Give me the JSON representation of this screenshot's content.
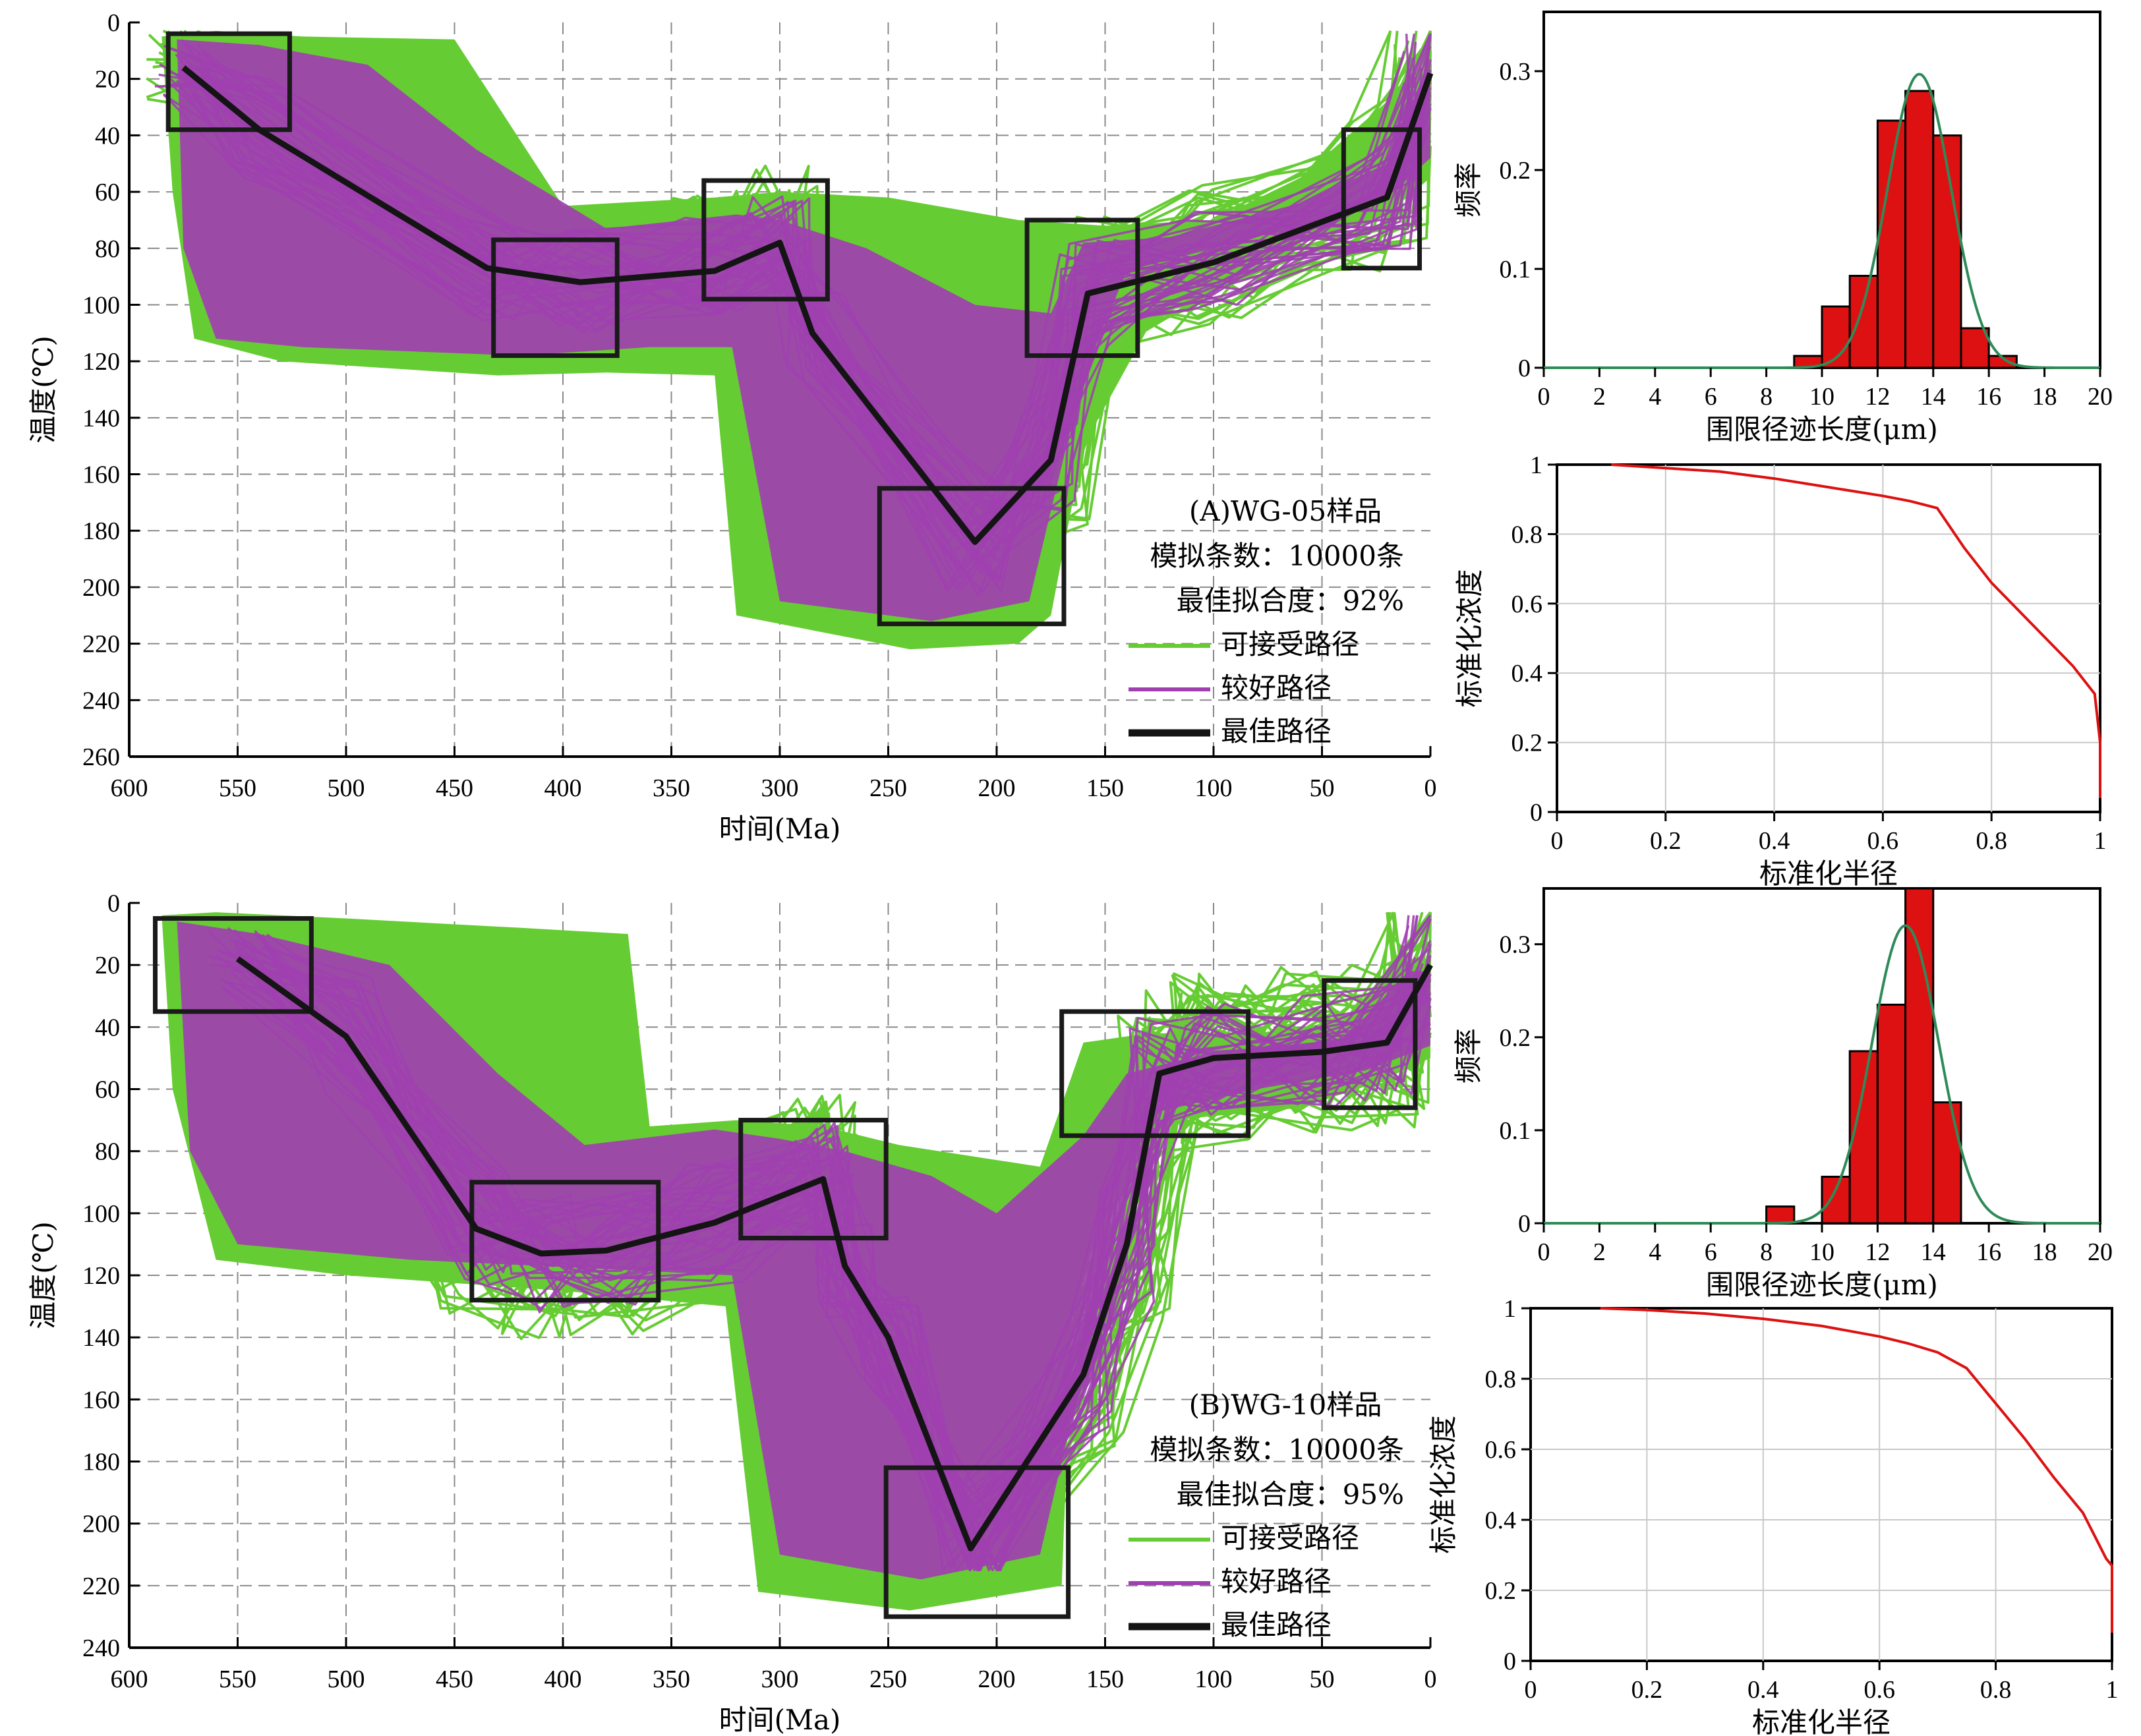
{
  "colors": {
    "acceptable": "#66CC33",
    "good": "#A040B0",
    "best": "#141414",
    "histogram": "#DD1111",
    "curve_green": "#2E8B57",
    "curve_red": "#DD1111"
  },
  "chart_data": [
    {
      "id": "A",
      "type": "line",
      "sample": "(A)WG-05样品",
      "sim_line": "模拟条数：10000条",
      "fit_line": "最佳拟合度：92%",
      "legend": [
        "可接受路径",
        "较好路径",
        "最佳路径"
      ],
      "xlabel": "时间(Ma)",
      "ylabel": "温度(℃)",
      "xlim": [
        600,
        0
      ],
      "ylim": [
        0,
        260
      ],
      "xticks": [
        600,
        550,
        500,
        450,
        400,
        350,
        300,
        250,
        200,
        150,
        100,
        50,
        0
      ],
      "yticks": [
        0,
        20,
        40,
        60,
        80,
        100,
        120,
        140,
        160,
        180,
        200,
        220,
        240,
        260
      ],
      "best_path": [
        [
          575,
          16
        ],
        [
          540,
          38
        ],
        [
          435,
          87
        ],
        [
          392,
          92
        ],
        [
          330,
          88
        ],
        [
          300,
          78
        ],
        [
          285,
          110
        ],
        [
          210,
          184
        ],
        [
          175,
          155
        ],
        [
          158,
          96
        ],
        [
          100,
          85
        ],
        [
          20,
          62
        ],
        [
          0,
          18
        ]
      ],
      "boxes": [
        [
          582,
          4,
          526,
          38
        ],
        [
          432,
          77,
          375,
          118
        ],
        [
          335,
          56,
          278,
          98
        ],
        [
          186,
          70,
          135,
          118
        ],
        [
          254,
          165,
          169,
          213
        ],
        [
          40,
          38,
          5,
          87
        ]
      ],
      "envelope_acceptable": [
        [
          585,
          5
        ],
        [
          560,
          3
        ],
        [
          520,
          5
        ],
        [
          450,
          6
        ],
        [
          400,
          65
        ],
        [
          330,
          62
        ],
        [
          300,
          60
        ],
        [
          250,
          62
        ],
        [
          190,
          70
        ],
        [
          150,
          72
        ],
        [
          100,
          70
        ],
        [
          60,
          55
        ],
        [
          20,
          28
        ],
        [
          10,
          18
        ],
        [
          0,
          18
        ],
        [
          0,
          55
        ],
        [
          20,
          68
        ],
        [
          60,
          78
        ],
        [
          100,
          92
        ],
        [
          130,
          108
        ],
        [
          160,
          150
        ],
        [
          175,
          210
        ],
        [
          190,
          220
        ],
        [
          240,
          222
        ],
        [
          320,
          210
        ],
        [
          330,
          125
        ],
        [
          380,
          124
        ],
        [
          430,
          125
        ],
        [
          530,
          120
        ],
        [
          570,
          112
        ],
        [
          580,
          60
        ]
      ],
      "envelope_good": [
        [
          578,
          6
        ],
        [
          540,
          8
        ],
        [
          490,
          15
        ],
        [
          440,
          45
        ],
        [
          380,
          73
        ],
        [
          320,
          68
        ],
        [
          300,
          70
        ],
        [
          260,
          80
        ],
        [
          210,
          100
        ],
        [
          175,
          103
        ],
        [
          160,
          78
        ],
        [
          120,
          76
        ],
        [
          60,
          64
        ],
        [
          20,
          50
        ],
        [
          5,
          22
        ],
        [
          0,
          22
        ],
        [
          0,
          48
        ],
        [
          20,
          62
        ],
        [
          60,
          72
        ],
        [
          100,
          80
        ],
        [
          140,
          88
        ],
        [
          160,
          125
        ],
        [
          185,
          205
        ],
        [
          230,
          212
        ],
        [
          300,
          205
        ],
        [
          322,
          115
        ],
        [
          360,
          115
        ],
        [
          420,
          118
        ],
        [
          520,
          115
        ],
        [
          560,
          112
        ],
        [
          575,
          80
        ]
      ]
    },
    {
      "id": "B",
      "type": "line",
      "sample": "(B)WG-10样品",
      "sim_line": "模拟条数：10000条",
      "fit_line": "最佳拟合度：95%",
      "legend": [
        "可接受路径",
        "较好路径",
        "最佳路径"
      ],
      "xlabel": "时间(Ma)",
      "ylabel": "温度(℃)",
      "xlim": [
        600,
        0
      ],
      "ylim": [
        0,
        240
      ],
      "xticks": [
        600,
        550,
        500,
        450,
        400,
        350,
        300,
        250,
        200,
        150,
        100,
        50,
        0
      ],
      "yticks": [
        0,
        20,
        40,
        60,
        80,
        100,
        120,
        140,
        160,
        180,
        200,
        220,
        240
      ],
      "best_path": [
        [
          550,
          18
        ],
        [
          500,
          43
        ],
        [
          440,
          105
        ],
        [
          410,
          113
        ],
        [
          380,
          112
        ],
        [
          330,
          103
        ],
        [
          280,
          89
        ],
        [
          270,
          117
        ],
        [
          250,
          140
        ],
        [
          212,
          208
        ],
        [
          160,
          152
        ],
        [
          140,
          110
        ],
        [
          125,
          55
        ],
        [
          100,
          50
        ],
        [
          50,
          48
        ],
        [
          20,
          45
        ],
        [
          0,
          20
        ]
      ],
      "boxes": [
        [
          588,
          5,
          516,
          35
        ],
        [
          442,
          90,
          356,
          128
        ],
        [
          318,
          70,
          251,
          108
        ],
        [
          170,
          35,
          84,
          75
        ],
        [
          251,
          182,
          167,
          230
        ],
        [
          49,
          25,
          7,
          66
        ]
      ],
      "envelope_acceptable": [
        [
          585,
          4
        ],
        [
          560,
          3
        ],
        [
          500,
          5
        ],
        [
          420,
          8
        ],
        [
          370,
          10
        ],
        [
          360,
          72
        ],
        [
          320,
          70
        ],
        [
          280,
          72
        ],
        [
          245,
          78
        ],
        [
          180,
          85
        ],
        [
          160,
          45
        ],
        [
          130,
          42
        ],
        [
          80,
          42
        ],
        [
          40,
          38
        ],
        [
          15,
          18
        ],
        [
          0,
          18
        ],
        [
          0,
          50
        ],
        [
          25,
          58
        ],
        [
          60,
          66
        ],
        [
          120,
          70
        ],
        [
          150,
          100
        ],
        [
          165,
          130
        ],
        [
          170,
          220
        ],
        [
          240,
          228
        ],
        [
          310,
          222
        ],
        [
          325,
          130
        ],
        [
          400,
          125
        ],
        [
          500,
          120
        ],
        [
          560,
          115
        ],
        [
          580,
          60
        ]
      ],
      "envelope_good": [
        [
          578,
          6
        ],
        [
          540,
          10
        ],
        [
          480,
          20
        ],
        [
          430,
          55
        ],
        [
          390,
          78
        ],
        [
          330,
          73
        ],
        [
          300,
          76
        ],
        [
          270,
          80
        ],
        [
          230,
          88
        ],
        [
          200,
          100
        ],
        [
          160,
          75
        ],
        [
          140,
          55
        ],
        [
          100,
          48
        ],
        [
          40,
          44
        ],
        [
          10,
          22
        ],
        [
          0,
          22
        ],
        [
          0,
          46
        ],
        [
          30,
          54
        ],
        [
          80,
          60
        ],
        [
          130,
          68
        ],
        [
          150,
          120
        ],
        [
          180,
          210
        ],
        [
          235,
          218
        ],
        [
          300,
          210
        ],
        [
          322,
          120
        ],
        [
          380,
          118
        ],
        [
          470,
          115
        ],
        [
          550,
          110
        ],
        [
          572,
          80
        ]
      ]
    },
    {
      "id": "A-hist",
      "type": "bar",
      "xlabel": "围限径迹长度(μm)",
      "ylabel": "频率",
      "xlim": [
        0,
        20
      ],
      "ylim": [
        0,
        0.36
      ],
      "xticks": [
        0,
        2,
        4,
        6,
        8,
        10,
        12,
        14,
        16,
        18,
        20
      ],
      "yticks": [
        0,
        0.1,
        0.2,
        0.3
      ],
      "bin_width": 1,
      "bins": [
        9,
        10,
        11,
        12,
        13,
        14,
        15,
        16
      ],
      "values": [
        0.012,
        0.062,
        0.093,
        0.25,
        0.28,
        0.235,
        0.04,
        0.012
      ],
      "curve": {
        "type": "gaussian",
        "mean": 13.5,
        "sd": 1.15,
        "peak": 0.297,
        "xrange": [
          0,
          20
        ]
      }
    },
    {
      "id": "A-conc",
      "type": "line",
      "xlabel": "标准化半径",
      "ylabel": "标准化浓度",
      "xlim": [
        0,
        1
      ],
      "ylim": [
        0,
        1
      ],
      "xticks": [
        0,
        0.2,
        0.4,
        0.6,
        0.8,
        1
      ],
      "yticks": [
        0,
        0.2,
        0.4,
        0.6,
        0.8,
        1
      ],
      "points": [
        [
          0.1,
          1
        ],
        [
          0.2,
          0.99
        ],
        [
          0.3,
          0.98
        ],
        [
          0.4,
          0.96
        ],
        [
          0.5,
          0.935
        ],
        [
          0.6,
          0.91
        ],
        [
          0.65,
          0.895
        ],
        [
          0.7,
          0.875
        ],
        [
          0.75,
          0.76
        ],
        [
          0.8,
          0.66
        ],
        [
          0.9,
          0.5
        ],
        [
          0.95,
          0.42
        ],
        [
          0.99,
          0.34
        ],
        [
          1,
          0.2
        ],
        [
          1,
          0.04
        ]
      ]
    },
    {
      "id": "B-hist",
      "type": "bar",
      "xlabel": "围限径迹长度(μm)",
      "ylabel": "频率",
      "xlim": [
        0,
        20
      ],
      "ylim": [
        0,
        0.36
      ],
      "xticks": [
        0,
        2,
        4,
        6,
        8,
        10,
        12,
        14,
        16,
        18,
        20
      ],
      "yticks": [
        0,
        0.1,
        0.2,
        0.3
      ],
      "bin_width": 1,
      "bins": [
        8,
        10,
        11,
        12,
        13,
        14
      ],
      "values": [
        0.018,
        0.05,
        0.185,
        0.235,
        0.36,
        0.13
      ],
      "curve": {
        "type": "gaussian",
        "mean": 13.0,
        "sd": 1.2,
        "peak": 0.32,
        "xrange": [
          0,
          20
        ]
      }
    },
    {
      "id": "B-conc",
      "type": "line",
      "xlabel": "标准化半径",
      "ylabel": "标准化浓度",
      "xlim": [
        0,
        1
      ],
      "ylim": [
        0,
        1
      ],
      "xticks": [
        0,
        0.2,
        0.4,
        0.6,
        0.8,
        1
      ],
      "yticks": [
        0,
        0.2,
        0.4,
        0.6,
        0.8,
        1
      ],
      "points": [
        [
          0.12,
          1
        ],
        [
          0.2,
          0.995
        ],
        [
          0.3,
          0.985
        ],
        [
          0.4,
          0.97
        ],
        [
          0.5,
          0.95
        ],
        [
          0.6,
          0.92
        ],
        [
          0.65,
          0.9
        ],
        [
          0.7,
          0.875
        ],
        [
          0.75,
          0.83
        ],
        [
          0.8,
          0.73
        ],
        [
          0.85,
          0.63
        ],
        [
          0.9,
          0.52
        ],
        [
          0.95,
          0.42
        ],
        [
          0.99,
          0.29
        ],
        [
          1,
          0.27
        ],
        [
          1,
          0.08
        ]
      ]
    }
  ]
}
